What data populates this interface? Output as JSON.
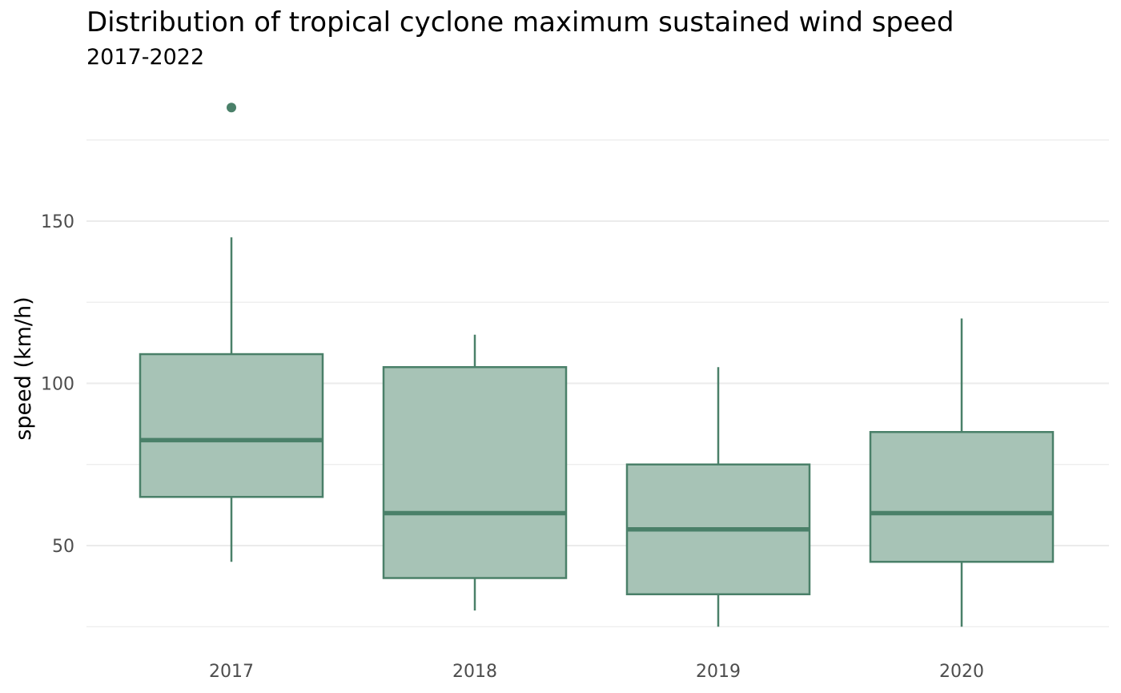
{
  "chart_data": {
    "type": "boxplot",
    "title": "Distribution of tropical cyclone maximum sustained wind speed",
    "subtitle": "2017-2022",
    "xlabel": "",
    "ylabel": "speed (km/h)",
    "ylim": [
      19,
      190
    ],
    "y_ticks": [
      50,
      100,
      150
    ],
    "y_minor_gridlines": [
      25,
      75,
      125,
      175
    ],
    "grid": true,
    "legend": "none",
    "colors": {
      "box_fill": "#a7c3b6",
      "box_stroke": "#4a8069",
      "gridline": "#ebebeb"
    },
    "categories": [
      "2017",
      "2018",
      "2019",
      "2020"
    ],
    "boxes": [
      {
        "category": "2017",
        "whisker_low": 45,
        "q1": 65,
        "median": 82.5,
        "q3": 109,
        "whisker_high": 145,
        "outliers": [
          185
        ]
      },
      {
        "category": "2018",
        "whisker_low": 30,
        "q1": 40,
        "median": 60,
        "q3": 105,
        "whisker_high": 115,
        "outliers": []
      },
      {
        "category": "2019",
        "whisker_low": 25,
        "q1": 35,
        "median": 55,
        "q3": 75,
        "whisker_high": 105,
        "outliers": []
      },
      {
        "category": "2020",
        "whisker_low": 25,
        "q1": 45,
        "median": 60,
        "q3": 85,
        "whisker_high": 120,
        "outliers": []
      }
    ]
  }
}
